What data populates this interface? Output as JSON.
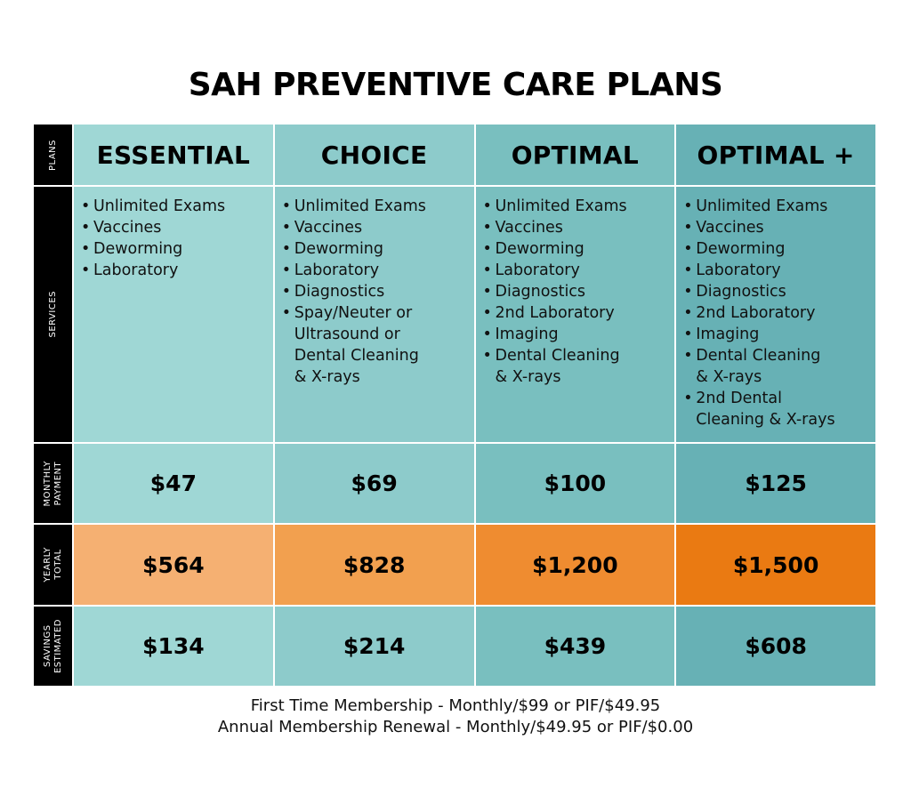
{
  "title": "SAH PREVENTIVE CARE PLANS",
  "row_headers": {
    "plans": "PLANS",
    "services": "SERVICES",
    "monthly": "MONTHLY\nPAYMENT",
    "yearly": "YEARLY\nTOTAL",
    "savings": "SAVINGS\nESTIMATED"
  },
  "plans": [
    {
      "name": "ESSENTIAL",
      "services": [
        "Unlimited Exams",
        "Vaccines",
        "Deworming",
        "Laboratory"
      ],
      "monthly": "$47",
      "yearly": "$564",
      "savings": "$134"
    },
    {
      "name": "CHOICE",
      "services": [
        "Unlimited Exams",
        "Vaccines",
        "Deworming",
        "Laboratory",
        "Diagnostics",
        "Spay/Neuter or\nUltrasound or\nDental Cleaning\n& X-rays"
      ],
      "monthly": "$69",
      "yearly": "$828",
      "savings": "$214"
    },
    {
      "name": "OPTIMAL",
      "services": [
        "Unlimited Exams",
        "Vaccines",
        "Deworming",
        "Laboratory",
        "Diagnostics",
        "2nd Laboratory",
        "Imaging",
        "Dental Cleaning\n& X-rays"
      ],
      "monthly": "$100",
      "yearly": "$1,200",
      "savings": "$439"
    },
    {
      "name": "OPTIMAL +",
      "services": [
        "Unlimited Exams",
        "Vaccines",
        "Deworming",
        "Laboratory",
        "Diagnostics",
        "2nd Laboratory",
        "Imaging",
        "Dental Cleaning\n& X-rays",
        "2nd Dental\nCleaning & X-rays"
      ],
      "monthly": "$125",
      "yearly": "$1,500",
      "savings": "$608"
    }
  ],
  "footer": {
    "line1": "First Time Membership - Monthly/$99 or PIF/$49.95",
    "line2": "Annual Membership Renewal - Monthly/$49.95 or PIF/$0.00"
  },
  "colors": {
    "teal_column_shades": [
      "#9fd7d5",
      "#8dcbcb",
      "#79bfbf",
      "#67b1b5"
    ],
    "orange_column_shades": [
      "#f5b072",
      "#f2a04f",
      "#ef8c30",
      "#ea7a12"
    ],
    "row_header_bg": "#000000"
  }
}
